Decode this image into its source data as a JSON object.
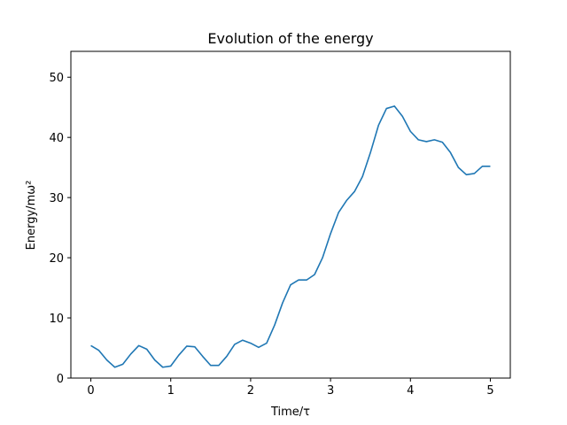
{
  "chart_data": {
    "type": "line",
    "title": "Evolution of the energy",
    "x_label": "Time/τ",
    "y_label": "Energy/mω²",
    "x": [
      0,
      0.1,
      0.2,
      0.3,
      0.4,
      0.5,
      0.6,
      0.7,
      0.8,
      0.9,
      1.0,
      1.1,
      1.2,
      1.3,
      1.4,
      1.5,
      1.6,
      1.7,
      1.8,
      1.9,
      2.0,
      2.1,
      2.2,
      2.3,
      2.4,
      2.5,
      2.6,
      2.7,
      2.8,
      2.9,
      3.0,
      3.1,
      3.2,
      3.3,
      3.4,
      3.5,
      3.6,
      3.7,
      3.8,
      3.9,
      4.0,
      4.1,
      4.2,
      4.3,
      4.4,
      4.5,
      4.6,
      4.7,
      4.8,
      4.9,
      5.0
    ],
    "series": [
      {
        "color": "#1f77b4",
        "values": [
          5.4,
          4.6,
          3.0,
          1.8,
          2.3,
          4.0,
          5.4,
          4.8,
          3.0,
          1.8,
          2.0,
          3.8,
          5.3,
          5.2,
          3.6,
          2.1,
          2.1,
          3.6,
          5.6,
          6.3,
          5.8,
          5.1,
          5.8,
          8.8,
          12.5,
          15.5,
          16.3,
          16.3,
          17.2,
          20.0,
          24.0,
          27.5,
          29.5,
          31.0,
          33.5,
          37.5,
          42.0,
          44.8,
          45.2,
          43.5,
          41.0,
          39.6,
          39.3,
          39.6,
          39.2,
          37.5,
          35.0,
          33.8,
          34.0,
          35.2,
          35.2
        ]
      }
    ],
    "xlim": [
      -0.25,
      5.25
    ],
    "xticks": [
      0,
      1,
      2,
      3,
      4,
      5
    ],
    "ylim": [
      0,
      54.3
    ],
    "yticks": [
      0,
      10,
      20,
      30,
      40,
      50
    ],
    "grid": false
  }
}
